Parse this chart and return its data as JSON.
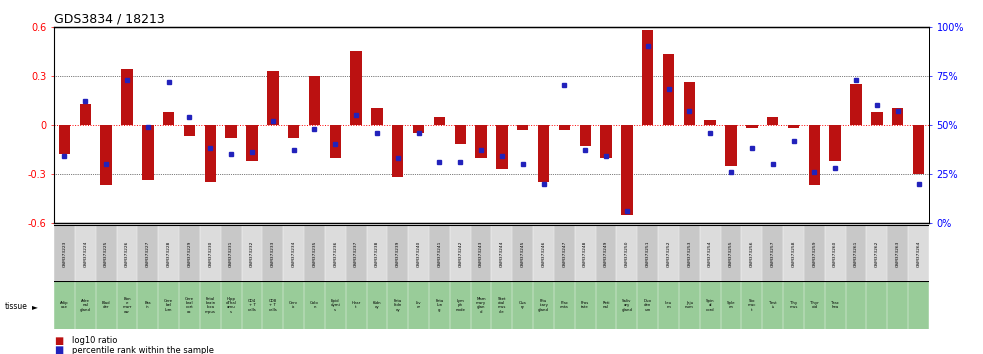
{
  "title": "GDS3834 / 18213",
  "gsm_labels": [
    "GSM373223",
    "GSM373224",
    "GSM373225",
    "GSM373226",
    "GSM373227",
    "GSM373228",
    "GSM373229",
    "GSM373230",
    "GSM373231",
    "GSM373232",
    "GSM373233",
    "GSM373234",
    "GSM373235",
    "GSM373236",
    "GSM373237",
    "GSM373238",
    "GSM373239",
    "GSM373240",
    "GSM373241",
    "GSM373242",
    "GSM373243",
    "GSM373244",
    "GSM373245",
    "GSM373246",
    "GSM373247",
    "GSM373248",
    "GSM373249",
    "GSM373250",
    "GSM373251",
    "GSM373252",
    "GSM373253",
    "GSM373254",
    "GSM373255",
    "GSM373256",
    "GSM373257",
    "GSM373258",
    "GSM373259",
    "GSM373260",
    "GSM373261",
    "GSM373262",
    "GSM373263",
    "GSM373264"
  ],
  "tissue_labels": [
    "Adip\nose",
    "Adre\nnal\ngland",
    "Blad\nder",
    "Bon\ne\nmarr\now",
    "Bra\nin",
    "Cere\nbel\nlum",
    "Cere\nbral\ncort\nex",
    "Fetal\nbrain\nloca\nmpus",
    "Hipp\noThal\namu\ns",
    "CD4\n+ T\ncells",
    "CD8\n+ T\ncells",
    "Cerv\nix",
    "Colo\nn",
    "Epid\ndymi\ns",
    "Hear\nt",
    "Kidn\ney",
    "Feta\nkidn\ney",
    "Liv\ner",
    "Feta\nlun\ng",
    "Lym\nph\nnode",
    "Mam\nmary\nglan\nd",
    "Sket\netal\nmus\ncle",
    "Ova\nry",
    "Pitu\nitary\ngland",
    "Plac\nenta",
    "Pros\ntate",
    "Reti\nnal",
    "Saliv\nary\ngland",
    "Duo\nden\num",
    "Ileu\nm",
    "Jeju\nnum",
    "Spin\nal\ncord",
    "Sple\nen",
    "Sto\nmac\nt",
    "Test\nis",
    "Thy\nmus",
    "Thyr\noid",
    "Trac\nhea",
    "",
    "",
    "",
    ""
  ],
  "log10_ratio": [
    -0.18,
    0.13,
    -0.37,
    0.34,
    -0.34,
    0.08,
    -0.07,
    -0.35,
    -0.08,
    -0.22,
    0.33,
    -0.08,
    0.3,
    -0.2,
    0.45,
    0.1,
    -0.32,
    -0.05,
    0.05,
    -0.12,
    -0.2,
    -0.27,
    -0.03,
    -0.35,
    -0.03,
    -0.13,
    -0.2,
    -0.55,
    0.58,
    0.43,
    0.26,
    0.03,
    -0.25,
    -0.02,
    0.05,
    -0.02,
    -0.37,
    -0.22,
    0.25,
    0.08,
    0.1,
    -0.3
  ],
  "percentile_rank": [
    34,
    62,
    30,
    73,
    49,
    72,
    54,
    38,
    35,
    36,
    52,
    37,
    48,
    40,
    55,
    46,
    33,
    46,
    31,
    31,
    37,
    34,
    30,
    20,
    70,
    37,
    34,
    6,
    90,
    68,
    57,
    46,
    26,
    38,
    30,
    42,
    26,
    28,
    73,
    60,
    57,
    20
  ],
  "bar_color": "#bb1111",
  "dot_color": "#2222bb",
  "bg_color_gsm_even": "#c8c8c8",
  "bg_color_gsm_odd": "#dcdcdc",
  "bg_color_green": "#99cc99",
  "ylim": [
    -0.6,
    0.6
  ],
  "right_ylim": [
    0,
    100
  ],
  "title_fontsize": 9,
  "legend_label_bar": "log10 ratio",
  "legend_label_dot": "percentile rank within the sample"
}
